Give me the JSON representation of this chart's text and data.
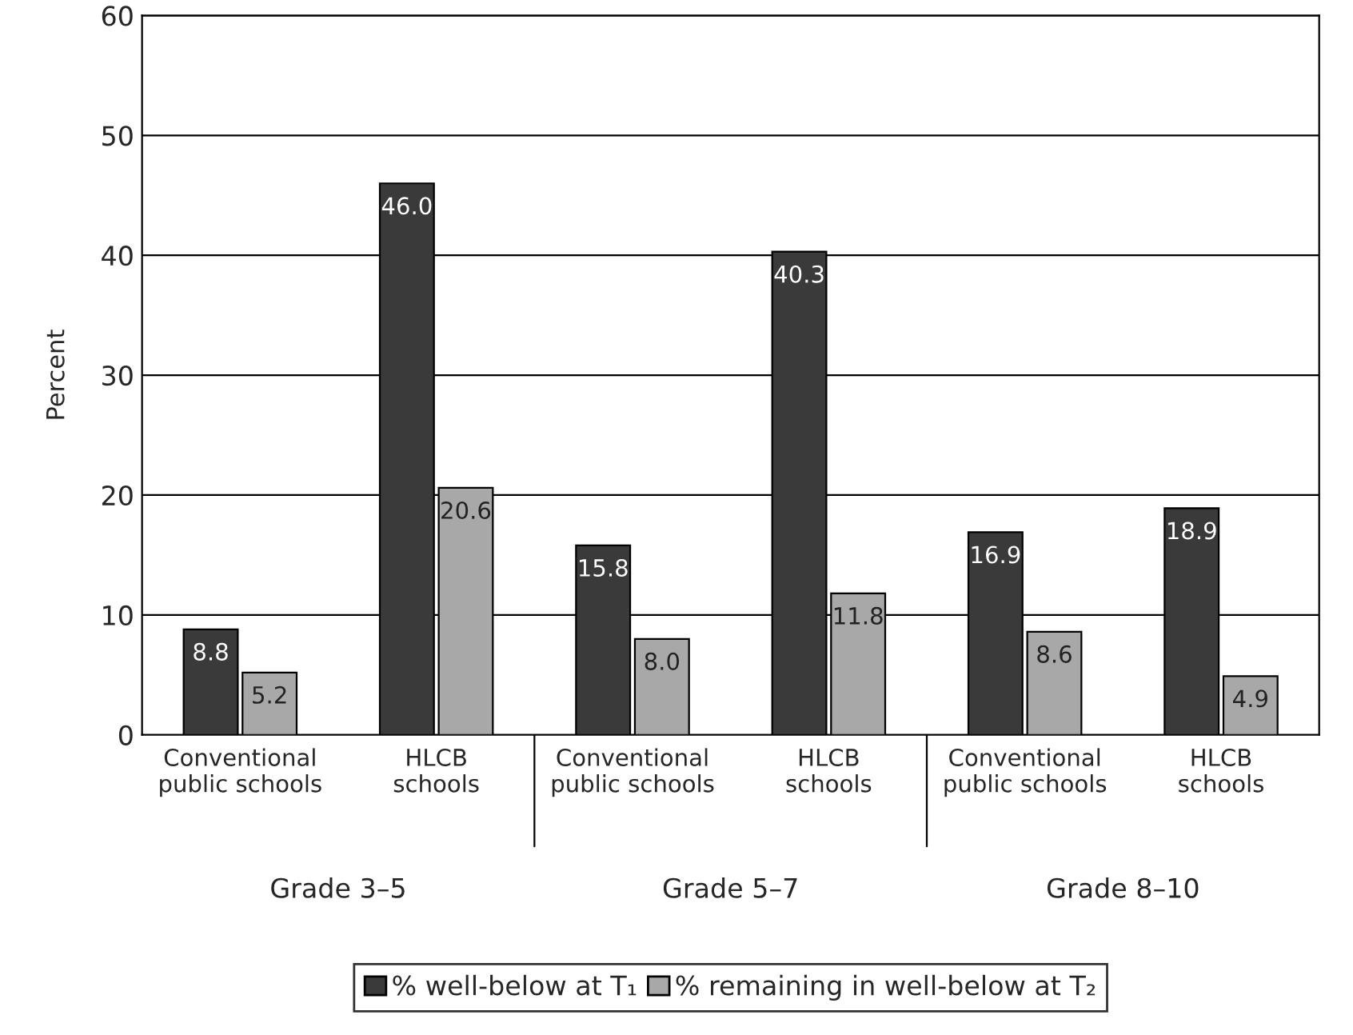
{
  "chart_data": {
    "type": "bar",
    "ylabel": "Percent",
    "categories": [
      "Conventional\npublic schools",
      "HLCB\nschools",
      "Conventional\npublic schools",
      "HLCB\nschools",
      "Conventional\npublic schools",
      "HLCB\nschools"
    ],
    "series": [
      {
        "name": "% well-below at T₁",
        "color": "#3a3a3a",
        "values": [
          8.8,
          46.0,
          15.8,
          40.3,
          16.9,
          18.9
        ],
        "value_labels": [
          "8.8",
          "46.0",
          "15.8",
          "40.3",
          "16.9",
          "18.9"
        ]
      },
      {
        "name": "% remaining in well-below at T₂",
        "color": "#a8a8a8",
        "values": [
          5.2,
          20.6,
          8.0,
          11.8,
          8.6,
          4.9
        ],
        "value_labels": [
          "5.2",
          "20.6",
          "8.0",
          "11.8",
          "8.6",
          "4.9"
        ]
      }
    ],
    "annotations": [
      "Grade 3–5",
      "Grade 5–7",
      "Grade 8–10"
    ],
    "ylim": [
      0,
      60
    ],
    "yticks": [
      0,
      10,
      20,
      30,
      40,
      50,
      60
    ],
    "grid": "y",
    "legend": "bottom"
  }
}
